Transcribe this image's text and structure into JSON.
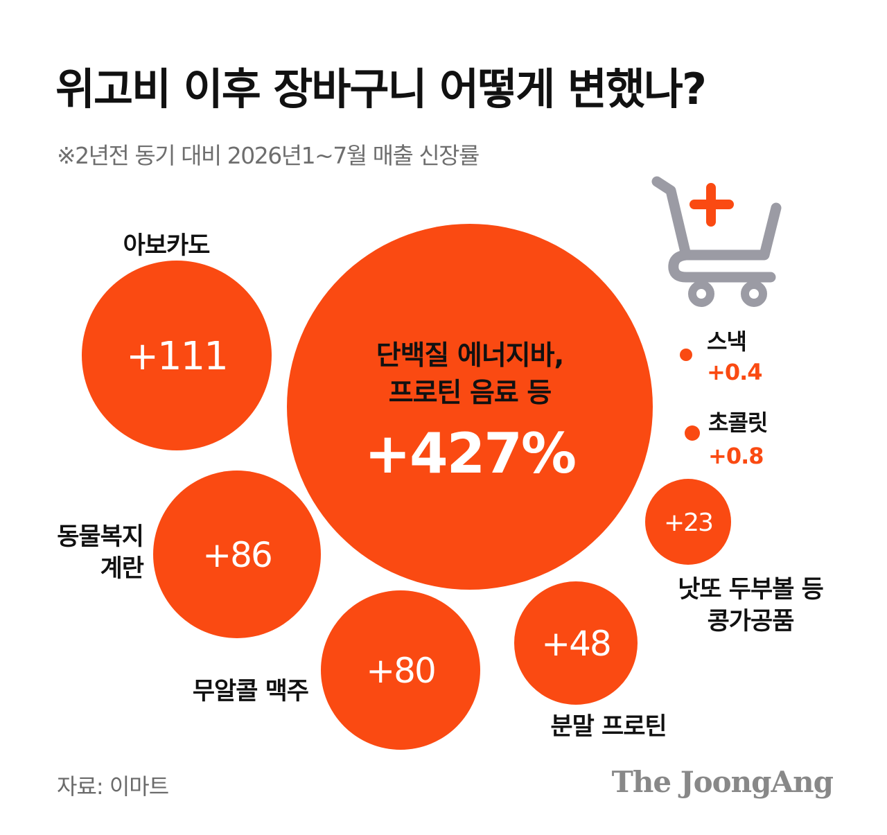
{
  "title": "위고비 이후 장바구니 어떻게 변했나?",
  "subtitle": "※2년전 동기 대비 2026년1~7월 매출 신장률",
  "source": "자료: 이마트",
  "brand": "The JoongAng",
  "colors": {
    "bubble": "#fa4a12",
    "dark_text": "#111111",
    "muted_text": "#6e6e6e",
    "cart_icon": "#9b9ba4",
    "cart_plus": "#fa4a12"
  },
  "icon": "shopping-cart-plus-icon",
  "chart_data": {
    "type": "bubble",
    "unit": "%",
    "items": [
      {
        "label_lines": [
          "단백질 에너지바,",
          "프로틴 음료 등"
        ],
        "value": 427,
        "value_label": "+427%"
      },
      {
        "label_lines": [
          "아보카도"
        ],
        "value": 111,
        "value_label": "+111"
      },
      {
        "label_lines": [
          "동물복지",
          "계란"
        ],
        "value": 86,
        "value_label": "+86"
      },
      {
        "label_lines": [
          "무알콜 맥주"
        ],
        "value": 80,
        "value_label": "+80"
      },
      {
        "label_lines": [
          "분말 프로틴"
        ],
        "value": 48,
        "value_label": "+48"
      },
      {
        "label_lines": [
          "낫또 두부볼 등",
          "콩가공품"
        ],
        "value": 23,
        "value_label": "+23"
      },
      {
        "label_lines": [
          "스낵"
        ],
        "value": 0.4,
        "value_label": "+0.4"
      },
      {
        "label_lines": [
          "초콜릿"
        ],
        "value": 0.8,
        "value_label": "+0.8"
      }
    ]
  }
}
